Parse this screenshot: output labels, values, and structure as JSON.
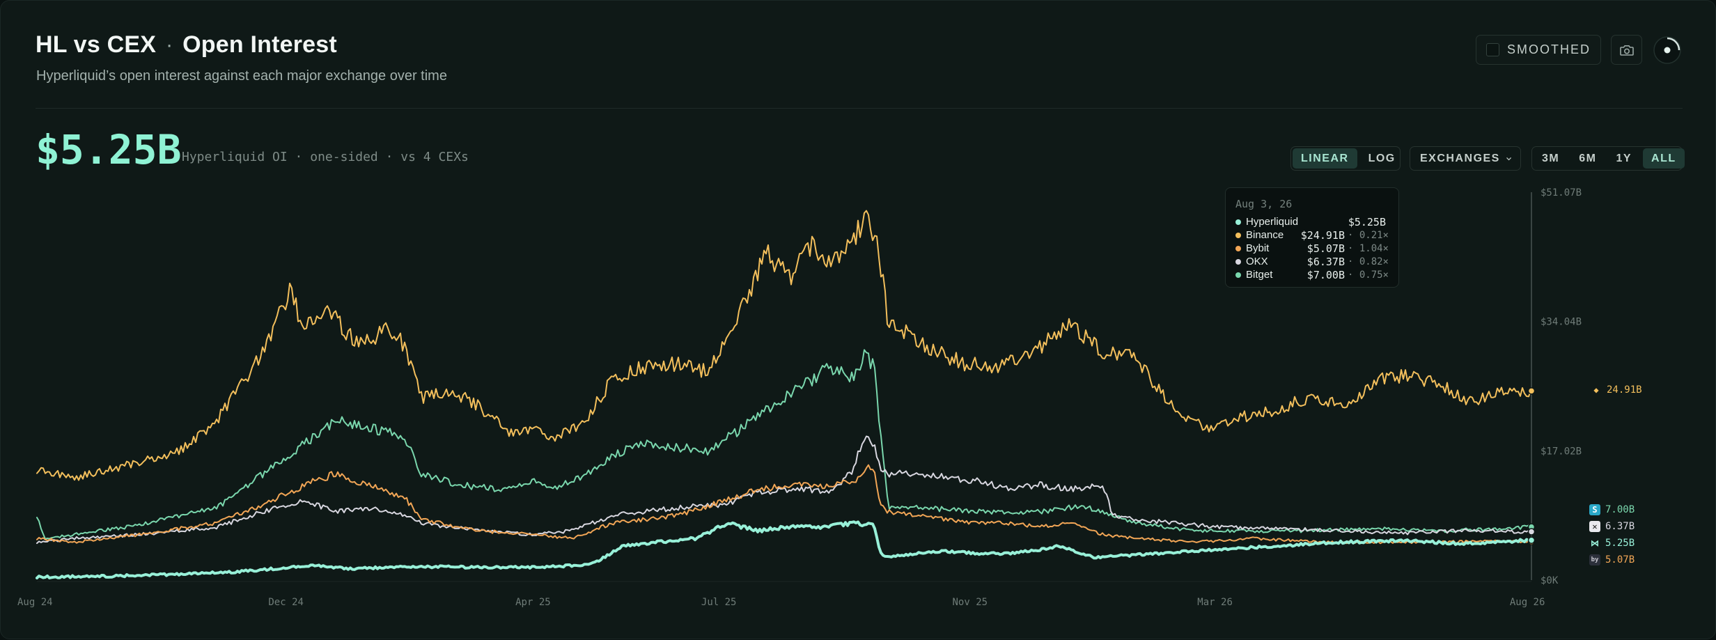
{
  "header": {
    "title_left": "HL vs CEX",
    "title_separator": "·",
    "title_right": "Open Interest",
    "subtitle": "Hyperliquid’s open interest against each major exchange over time",
    "smoothed_label": "SMOOTHED",
    "camera_icon": "camera-icon",
    "spinner_icon": "loading-spinner-icon"
  },
  "headline": {
    "value": "$5.25B",
    "caption": "Hyperliquid OI · one-sided · vs 4 CEXs"
  },
  "controls": {
    "scale": [
      {
        "label": "LINEAR",
        "active": true
      },
      {
        "label": "LOG",
        "active": false
      }
    ],
    "exchanges_label": "EXCHANGES",
    "exchanges_icon": "chevron-down-icon",
    "ranges": [
      {
        "label": "3M",
        "active": false
      },
      {
        "label": "6M",
        "active": false
      },
      {
        "label": "1Y",
        "active": false
      },
      {
        "label": "ALL",
        "active": true
      }
    ]
  },
  "tooltip": {
    "date": "Aug 3, 26",
    "rows": [
      {
        "name": "Hyperliquid",
        "value": "$5.25B",
        "ratio": ""
      },
      {
        "name": "Binance",
        "value": "$24.91B",
        "ratio": "· 0.21×"
      },
      {
        "name": "Bybit",
        "value": "$5.07B",
        "ratio": "· 1.04×"
      },
      {
        "name": "OKX",
        "value": "$6.37B",
        "ratio": "· 0.82×"
      },
      {
        "name": "Bitget",
        "value": "$7.00B",
        "ratio": "· 0.75×"
      }
    ]
  },
  "right_labels": [
    {
      "series": "Binance",
      "text": "24.91B",
      "icon": "binance-icon"
    },
    {
      "series": "Bitget",
      "text": "7.00B",
      "icon": "bitget-icon"
    },
    {
      "series": "OKX",
      "text": "6.37B",
      "icon": "okx-icon"
    },
    {
      "series": "Hyperliquid",
      "text": "5.25B",
      "icon": "hyperliquid-icon"
    },
    {
      "series": "Bybit",
      "text": "5.07B",
      "icon": "bybit-icon"
    }
  ],
  "chart_data": {
    "type": "line",
    "title": "",
    "xlabel": "",
    "ylabel": "",
    "ylim": [
      0,
      51.07
    ],
    "y_unit": "$B",
    "yticks": [
      "$0K",
      "$17.02B",
      "$34.04B",
      "$51.07B"
    ],
    "ytick_values": [
      0,
      17.02,
      34.04,
      51.07
    ],
    "xtick_labels": [
      "Aug 24",
      "Dec 24",
      "Apr 25",
      "Jul 25",
      "Nov 25",
      "Mar 26",
      "Aug 26"
    ],
    "xtick_dates": [
      "2024-08-01",
      "2024-12-01",
      "2025-04-01",
      "2025-07-01",
      "2025-11-01",
      "2026-03-01",
      "2026-08-01"
    ],
    "x_start": "2024-08-01",
    "x_end": "2026-08-03",
    "grid": false,
    "legend": "none",
    "crosshair_date": "2026-08-03",
    "series": [
      {
        "name": "Binance",
        "color": "#f3bf5c",
        "width": 2,
        "dates": [
          "2024-08-01",
          "2024-08-20",
          "2024-09-15",
          "2024-10-10",
          "2024-10-28",
          "2024-11-10",
          "2024-11-20",
          "2024-12-03",
          "2024-12-10",
          "2024-12-20",
          "2025-01-05",
          "2025-01-20",
          "2025-01-28",
          "2025-02-05",
          "2025-02-20",
          "2025-03-05",
          "2025-03-20",
          "2025-04-01",
          "2025-04-10",
          "2025-04-25",
          "2025-05-10",
          "2025-05-25",
          "2025-06-10",
          "2025-06-25",
          "2025-07-05",
          "2025-07-14",
          "2025-07-24",
          "2025-08-05",
          "2025-08-15",
          "2025-08-25",
          "2025-09-05",
          "2025-09-10",
          "2025-09-15",
          "2025-09-18",
          "2025-09-22",
          "2025-10-05",
          "2025-10-15",
          "2025-10-30",
          "2025-11-15",
          "2025-12-05",
          "2025-12-20",
          "2026-01-05",
          "2026-01-20",
          "2026-02-10",
          "2026-02-25",
          "2026-03-15",
          "2026-04-01",
          "2026-04-15",
          "2026-05-05",
          "2026-05-20",
          "2026-06-05",
          "2026-06-20",
          "2026-07-05",
          "2026-07-20",
          "2026-08-03"
        ],
        "values": [
          14.5,
          13.5,
          15.2,
          17.0,
          21.0,
          26.0,
          30.0,
          38.0,
          33.0,
          36.0,
          31.0,
          33.0,
          31.0,
          24.0,
          25.0,
          23.0,
          19.5,
          20.0,
          18.5,
          20.5,
          26.5,
          28.0,
          28.5,
          27.5,
          32.0,
          36.5,
          43.0,
          40.0,
          44.0,
          42.0,
          44.5,
          47.5,
          46.0,
          42.0,
          33.5,
          32.0,
          30.0,
          28.5,
          28.0,
          30.5,
          34.0,
          30.0,
          29.5,
          22.0,
          20.0,
          21.5,
          22.5,
          24.0,
          23.0,
          26.5,
          27.0,
          25.5,
          23.5,
          25.0,
          24.91
        ]
      },
      {
        "name": "Bitget",
        "color": "#7ad7ad",
        "width": 2,
        "dates": [
          "2024-08-01",
          "2024-08-05",
          "2024-09-15",
          "2024-10-28",
          "2024-11-20",
          "2024-12-10",
          "2024-12-25",
          "2025-01-10",
          "2025-01-28",
          "2025-02-05",
          "2025-02-25",
          "2025-03-15",
          "2025-04-01",
          "2025-04-10",
          "2025-04-25",
          "2025-05-10",
          "2025-05-25",
          "2025-06-10",
          "2025-06-25",
          "2025-07-10",
          "2025-08-10",
          "2025-08-25",
          "2025-09-05",
          "2025-09-10",
          "2025-09-15",
          "2025-09-18",
          "2025-09-22",
          "2025-10-01",
          "2025-10-20",
          "2025-11-05",
          "2025-11-20",
          "2025-12-05",
          "2025-12-15",
          "2025-12-25",
          "2026-01-05",
          "2026-01-20",
          "2026-02-20",
          "2026-03-15",
          "2026-04-15",
          "2026-05-20",
          "2026-06-20",
          "2026-07-20",
          "2026-08-03"
        ],
        "values": [
          8.5,
          5.5,
          7.0,
          9.5,
          14.0,
          18.0,
          21.0,
          20.0,
          19.0,
          14.0,
          12.5,
          12.0,
          13.0,
          12.0,
          13.5,
          16.5,
          18.0,
          17.5,
          17.0,
          19.5,
          25.5,
          28.0,
          26.5,
          29.5,
          28.5,
          20.0,
          9.5,
          9.7,
          9.3,
          9.0,
          9.0,
          9.0,
          9.3,
          9.8,
          9.0,
          7.5,
          6.5,
          6.5,
          6.5,
          6.8,
          6.5,
          6.8,
          7.0
        ]
      },
      {
        "name": "OKX",
        "color": "#d8d7e0",
        "width": 2,
        "dates": [
          "2024-08-01",
          "2024-08-20",
          "2024-09-20",
          "2024-10-28",
          "2024-11-20",
          "2024-12-10",
          "2024-12-25",
          "2025-01-10",
          "2025-01-28",
          "2025-02-05",
          "2025-03-05",
          "2025-04-01",
          "2025-04-20",
          "2025-05-10",
          "2025-06-10",
          "2025-07-05",
          "2025-07-20",
          "2025-08-10",
          "2025-08-25",
          "2025-09-05",
          "2025-09-10",
          "2025-09-15",
          "2025-09-18",
          "2025-09-22",
          "2025-10-05",
          "2025-10-20",
          "2025-11-05",
          "2025-11-20",
          "2025-12-05",
          "2025-12-20",
          "2026-01-05",
          "2026-01-10",
          "2026-01-20",
          "2026-02-10",
          "2026-03-01",
          "2026-04-01",
          "2026-05-01",
          "2026-06-01",
          "2026-07-01",
          "2026-08-03"
        ],
        "values": [
          5.0,
          5.5,
          6.0,
          7.0,
          9.0,
          10.5,
          9.0,
          9.5,
          8.5,
          7.5,
          6.5,
          6.0,
          6.5,
          8.5,
          9.5,
          10.0,
          11.5,
          12.0,
          11.5,
          14.5,
          19.0,
          17.5,
          15.0,
          14.0,
          14.0,
          13.5,
          13.0,
          12.0,
          12.5,
          12.0,
          12.5,
          8.5,
          8.0,
          7.5,
          7.0,
          6.8,
          6.5,
          6.2,
          6.5,
          6.37
        ]
      },
      {
        "name": "Bybit",
        "color": "#f2a656",
        "width": 2,
        "dates": [
          "2024-08-01",
          "2024-08-20",
          "2024-09-20",
          "2024-10-28",
          "2024-11-20",
          "2024-12-10",
          "2024-12-25",
          "2025-01-10",
          "2025-01-28",
          "2025-02-05",
          "2025-03-05",
          "2025-04-01",
          "2025-04-20",
          "2025-05-10",
          "2025-06-10",
          "2025-07-05",
          "2025-07-20",
          "2025-08-10",
          "2025-08-25",
          "2025-09-05",
          "2025-09-10",
          "2025-09-15",
          "2025-09-18",
          "2025-09-22",
          "2025-10-05",
          "2025-10-20",
          "2025-11-05",
          "2025-11-20",
          "2025-12-05",
          "2025-12-20",
          "2026-01-05",
          "2026-01-20",
          "2026-02-20",
          "2026-03-20",
          "2026-04-20",
          "2026-05-20",
          "2026-06-20",
          "2026-07-20",
          "2026-08-03"
        ],
        "values": [
          5.5,
          5.0,
          6.0,
          7.5,
          10.0,
          12.5,
          14.0,
          12.5,
          11.0,
          8.0,
          6.5,
          6.0,
          5.5,
          7.5,
          8.5,
          10.5,
          12.0,
          12.5,
          12.5,
          13.0,
          14.5,
          15.0,
          10.0,
          9.0,
          8.5,
          8.0,
          7.5,
          7.5,
          7.0,
          7.5,
          6.0,
          5.5,
          5.0,
          5.5,
          5.0,
          5.0,
          5.0,
          5.2,
          5.07
        ]
      },
      {
        "name": "Hyperliquid",
        "color": "#98f0d8",
        "width": 4,
        "dates": [
          "2024-08-01",
          "2024-09-01",
          "2024-10-01",
          "2024-11-01",
          "2024-12-01",
          "2024-12-15",
          "2025-01-01",
          "2025-02-01",
          "2025-03-01",
          "2025-04-01",
          "2025-04-15",
          "2025-05-01",
          "2025-05-15",
          "2025-06-01",
          "2025-06-20",
          "2025-07-05",
          "2025-07-20",
          "2025-08-05",
          "2025-08-20",
          "2025-09-05",
          "2025-09-15",
          "2025-09-18",
          "2025-09-22",
          "2025-10-05",
          "2025-10-20",
          "2025-11-05",
          "2025-11-20",
          "2025-12-05",
          "2025-12-15",
          "2026-01-01",
          "2026-02-01",
          "2026-03-01",
          "2026-04-01",
          "2026-05-01",
          "2026-06-01",
          "2026-07-01",
          "2026-08-03"
        ],
        "values": [
          0.4,
          0.5,
          0.7,
          1.0,
          1.6,
          2.0,
          1.5,
          1.8,
          1.7,
          1.7,
          1.8,
          2.2,
          4.5,
          5.0,
          5.5,
          7.5,
          6.5,
          7.0,
          7.0,
          7.5,
          7.2,
          3.5,
          3.0,
          3.5,
          3.8,
          3.5,
          3.5,
          4.0,
          4.5,
          3.0,
          3.5,
          4.0,
          4.5,
          5.0,
          5.2,
          4.8,
          5.25
        ]
      }
    ]
  }
}
